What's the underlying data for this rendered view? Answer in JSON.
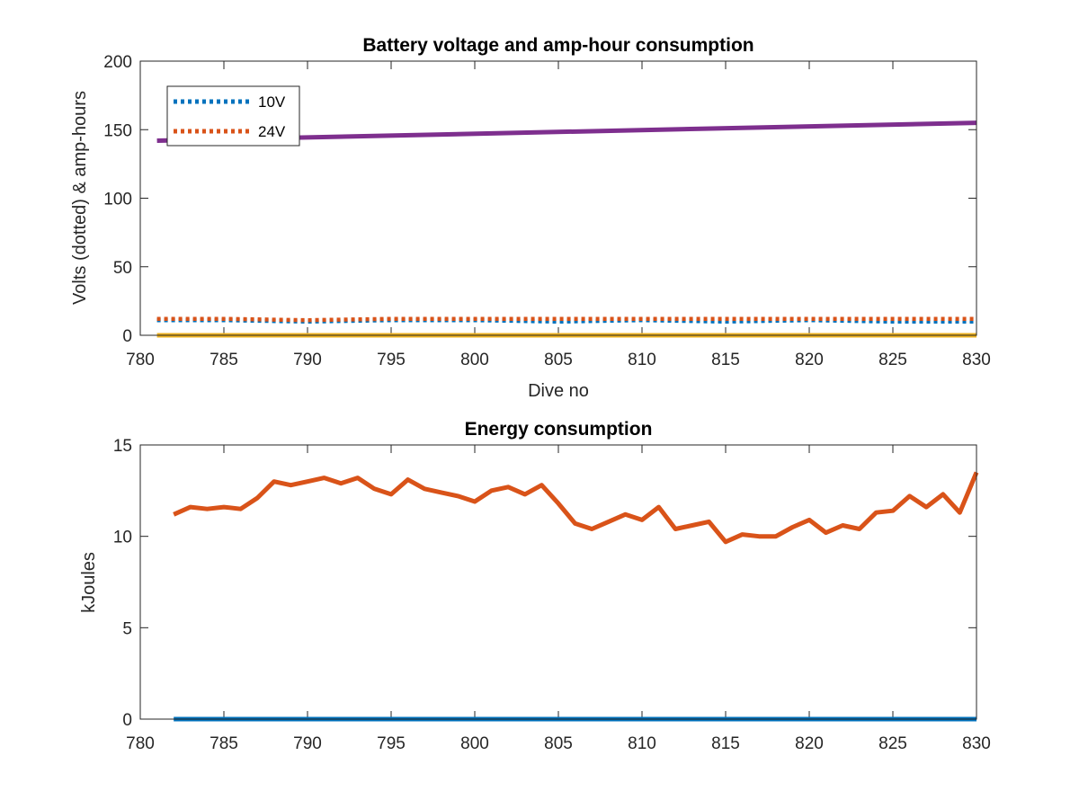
{
  "chart_data": [
    {
      "type": "line",
      "title": "Battery voltage and amp-hour consumption",
      "xlabel": "Dive no",
      "ylabel": "Volts (dotted) & amp-hours",
      "xlim": [
        780,
        830
      ],
      "ylim": [
        0,
        200
      ],
      "xticks": [
        780,
        785,
        790,
        795,
        800,
        805,
        810,
        815,
        820,
        825,
        830
      ],
      "yticks": [
        0,
        50,
        100,
        150,
        200
      ],
      "grid": false,
      "legend_position": "top-left",
      "series": [
        {
          "name": "10V",
          "color": "#0072BD",
          "style": "dotted",
          "x": [
            781,
            785,
            790,
            795,
            800,
            805,
            810,
            815,
            820,
            825,
            830
          ],
          "y": [
            11,
            11,
            10,
            11,
            11,
            10,
            11,
            10,
            11,
            10,
            10
          ]
        },
        {
          "name": "24V",
          "color": "#D95319",
          "style": "dotted",
          "x": [
            781,
            785,
            790,
            795,
            800,
            805,
            810,
            815,
            820,
            825,
            830
          ],
          "y": [
            12,
            12,
            11,
            12,
            12,
            12,
            12,
            12,
            12,
            12,
            12
          ]
        },
        {
          "color": "#7E2F8E",
          "style": "solid",
          "x": [
            781,
            830
          ],
          "y": [
            142,
            155
          ]
        },
        {
          "color": "#EDB120",
          "style": "solid",
          "x": [
            781,
            830
          ],
          "y": [
            0,
            0
          ]
        }
      ]
    },
    {
      "type": "line",
      "title": "Energy consumption",
      "xlabel": "",
      "ylabel": "kJoules",
      "xlim": [
        780,
        830
      ],
      "ylim": [
        0,
        15
      ],
      "xticks": [
        780,
        785,
        790,
        795,
        800,
        805,
        810,
        815,
        820,
        825,
        830
      ],
      "yticks": [
        0,
        5,
        10,
        15
      ],
      "grid": false,
      "series": [
        {
          "color": "#D95319",
          "style": "solid",
          "x": [
            782,
            783,
            784,
            785,
            786,
            787,
            788,
            789,
            790,
            791,
            792,
            793,
            794,
            795,
            796,
            797,
            798,
            799,
            800,
            801,
            802,
            803,
            804,
            805,
            806,
            807,
            808,
            809,
            810,
            811,
            812,
            813,
            814,
            815,
            816,
            817,
            818,
            819,
            820,
            821,
            822,
            823,
            824,
            825,
            826,
            827,
            828,
            829,
            830
          ],
          "y": [
            11.2,
            11.6,
            11.5,
            11.6,
            11.5,
            12.1,
            13.0,
            12.8,
            13.0,
            13.2,
            12.9,
            13.2,
            12.6,
            12.3,
            13.1,
            12.6,
            12.4,
            12.2,
            11.9,
            12.5,
            12.7,
            12.3,
            12.8,
            11.8,
            10.7,
            10.4,
            10.8,
            11.2,
            10.9,
            11.6,
            10.4,
            10.6,
            10.8,
            9.7,
            10.1,
            10.0,
            10.0,
            10.5,
            10.9,
            10.2,
            10.6,
            10.4,
            11.3,
            11.4,
            12.2,
            11.6,
            12.3,
            11.3,
            13.5
          ]
        },
        {
          "color": "#0072BD",
          "style": "solid",
          "x": [
            782,
            830
          ],
          "y": [
            0,
            0
          ]
        }
      ]
    }
  ]
}
